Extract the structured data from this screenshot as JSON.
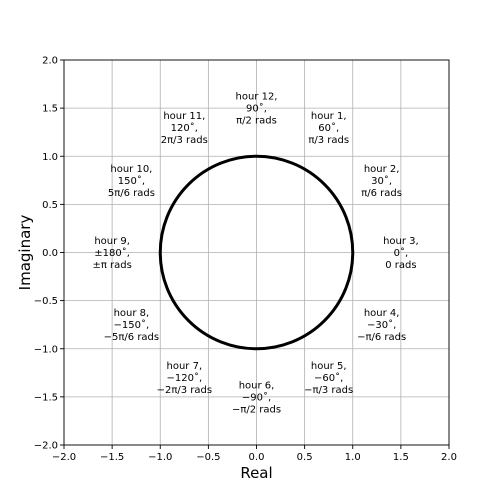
{
  "chart_data": {
    "type": "line",
    "title": "",
    "xlabel": "Real",
    "ylabel": "Imaginary",
    "xlim": [
      -2.0,
      2.0
    ],
    "ylim": [
      -2.0,
      2.0
    ],
    "grid": true,
    "x_ticks": [
      "−2.0",
      "−1.5",
      "−1.0",
      "−0.5",
      "0.0",
      "0.5",
      "1.0",
      "1.5",
      "2.0"
    ],
    "y_ticks": [
      "−2.0",
      "−1.5",
      "−1.0",
      "−0.5",
      "0.0",
      "0.5",
      "1.0",
      "1.5",
      "2.0"
    ],
    "x_tick_values": [
      -2.0,
      -1.5,
      -1.0,
      -0.5,
      0.0,
      0.5,
      1.0,
      1.5,
      2.0
    ],
    "y_tick_values": [
      -2.0,
      -1.5,
      -1.0,
      -0.5,
      0.0,
      0.5,
      1.0,
      1.5,
      2.0
    ],
    "series": [
      {
        "shape": "circle",
        "center": [
          0,
          0
        ],
        "radius": 1.0,
        "color": "#000000"
      }
    ],
    "annotations": [
      {
        "x": 0.0,
        "y": 1.5,
        "lines": [
          "hour 12,",
          "90˚,",
          "π/2 rads"
        ]
      },
      {
        "x": 0.75,
        "y": 1.3,
        "lines": [
          "hour 1,",
          "60˚,",
          "π/3 rads"
        ]
      },
      {
        "x": 1.3,
        "y": 0.75,
        "lines": [
          "hour 2,",
          "30˚,",
          "π/6 rads"
        ]
      },
      {
        "x": 1.5,
        "y": 0.0,
        "lines": [
          "hour 3,",
          "0˚,",
          "0 rads"
        ]
      },
      {
        "x": 1.3,
        "y": -0.75,
        "lines": [
          "hour 4,",
          "−30˚,",
          "−π/6 rads"
        ]
      },
      {
        "x": 0.75,
        "y": -1.3,
        "lines": [
          "hour 5,",
          "−60˚,",
          "−π/3 rads"
        ]
      },
      {
        "x": 0.0,
        "y": -1.5,
        "lines": [
          "hour 6,",
          "−90˚,",
          "−π/2 rads"
        ]
      },
      {
        "x": -0.75,
        "y": -1.3,
        "lines": [
          "hour 7,",
          "−120˚,",
          "−2π/3 rads"
        ]
      },
      {
        "x": -1.3,
        "y": -0.75,
        "lines": [
          "hour 8,",
          "−150˚,",
          "−5π/6 rads"
        ]
      },
      {
        "x": -1.5,
        "y": 0.0,
        "lines": [
          "hour 9,",
          "±180˚,",
          "±π rads"
        ]
      },
      {
        "x": -1.3,
        "y": 0.75,
        "lines": [
          "hour 10,",
          "150˚,",
          "5π/6 rads"
        ]
      },
      {
        "x": -0.75,
        "y": 1.3,
        "lines": [
          "hour 11,",
          "120˚,",
          "2π/3 rads"
        ]
      }
    ]
  }
}
